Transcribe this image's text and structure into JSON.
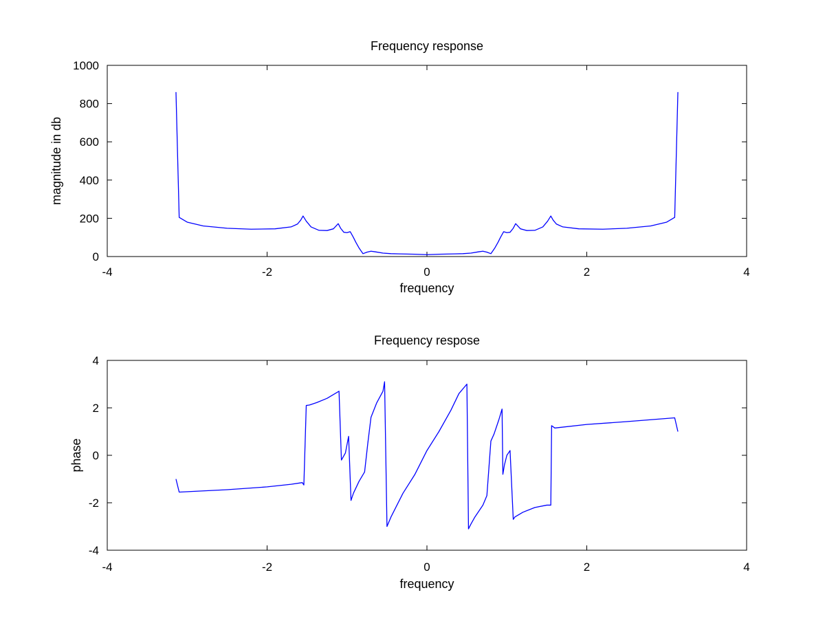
{
  "chart_data": [
    {
      "type": "line",
      "title": "Frequency response",
      "xlabel": "frequency",
      "ylabel": "magnitude in db",
      "xlim": [
        -4,
        4
      ],
      "ylim": [
        0,
        1000
      ],
      "xticks": [
        -4,
        -2,
        0,
        2,
        4
      ],
      "yticks": [
        0,
        200,
        400,
        600,
        800,
        1000
      ],
      "xtick_labels": [
        "-4",
        "-2",
        "0",
        "2",
        "4"
      ],
      "ytick_labels": [
        "0",
        "200",
        "400",
        "600",
        "800",
        "1000"
      ],
      "grid": false,
      "legend": "none",
      "series": [
        {
          "color": "#0000ff",
          "x": [
            -3.14,
            -3.1,
            -3.0,
            -2.8,
            -2.5,
            -2.2,
            -1.9,
            -1.7,
            -1.62,
            -1.58,
            -1.55,
            -1.51,
            -1.45,
            -1.35,
            -1.25,
            -1.17,
            -1.11,
            -1.08,
            -1.04,
            -1.0,
            -0.96,
            -0.92,
            -0.89,
            -0.85,
            -0.8,
            -0.75,
            -0.7,
            -0.65,
            -0.55,
            -0.45,
            -0.35,
            -0.25,
            -0.15,
            0,
            0.15,
            0.25,
            0.35,
            0.45,
            0.55,
            0.65,
            0.7,
            0.75,
            0.8,
            0.85,
            0.89,
            0.92,
            0.96,
            1.0,
            1.04,
            1.08,
            1.11,
            1.17,
            1.25,
            1.35,
            1.45,
            1.51,
            1.55,
            1.58,
            1.62,
            1.7,
            1.9,
            2.2,
            2.5,
            2.8,
            3.0,
            3.1,
            3.14
          ],
          "y": [
            860,
            205,
            180,
            160,
            148,
            143,
            145,
            155,
            170,
            190,
            212,
            185,
            155,
            137,
            136,
            145,
            172,
            148,
            127,
            125,
            130,
            100,
            75,
            45,
            15,
            23,
            28,
            25,
            18,
            15,
            14,
            13,
            12,
            10,
            12,
            13,
            14,
            15,
            18,
            25,
            28,
            23,
            15,
            45,
            75,
            100,
            130,
            125,
            127,
            148,
            172,
            145,
            136,
            137,
            155,
            185,
            212,
            190,
            170,
            155,
            145,
            143,
            148,
            160,
            180,
            205,
            860
          ]
        }
      ]
    },
    {
      "type": "line",
      "title": "Frequency respose",
      "xlabel": "frequency",
      "ylabel": "phase",
      "xlim": [
        -4,
        4
      ],
      "ylim": [
        -4,
        4
      ],
      "xticks": [
        -4,
        -2,
        0,
        2,
        4
      ],
      "yticks": [
        -4,
        -2,
        0,
        2,
        4
      ],
      "xtick_labels": [
        "-4",
        "-2",
        "0",
        "2",
        "4"
      ],
      "ytick_labels": [
        "-4",
        "-2",
        "0",
        "2",
        "4"
      ],
      "grid": false,
      "legend": "none",
      "series": [
        {
          "color": "#0000ff",
          "x": [
            -3.14,
            -3.1,
            -2.5,
            -2.0,
            -1.7,
            -1.56,
            -1.54,
            -1.51,
            -1.47,
            -1.38,
            -1.25,
            -1.1,
            -1.07,
            -1.02,
            -0.98,
            -0.95,
            -0.92,
            -0.85,
            -0.78,
            -0.74,
            -0.7,
            -0.63,
            -0.55,
            -0.53,
            -0.5,
            -0.45,
            -0.3,
            -0.15,
            0,
            0.15,
            0.3,
            0.4,
            0.5,
            0.52,
            0.55,
            0.6,
            0.7,
            0.75,
            0.8,
            0.84,
            0.9,
            0.94,
            0.95,
            0.97,
            1.0,
            1.04,
            1.08,
            1.1,
            1.2,
            1.35,
            1.5,
            1.55,
            1.56,
            1.6,
            2.0,
            2.5,
            3.1,
            3.14
          ],
          "y": [
            -1.0,
            -1.55,
            -1.45,
            -1.33,
            -1.22,
            -1.15,
            -1.25,
            2.1,
            2.12,
            2.22,
            2.4,
            2.7,
            -0.2,
            0.1,
            0.8,
            -1.9,
            -1.6,
            -1.1,
            -0.7,
            0.5,
            1.6,
            2.2,
            2.7,
            3.1,
            -3.0,
            -2.6,
            -1.6,
            -0.8,
            0.2,
            1.0,
            1.9,
            2.6,
            3.0,
            -3.1,
            -2.9,
            -2.6,
            -2.1,
            -1.7,
            0.6,
            0.9,
            1.5,
            1.95,
            -0.8,
            -0.4,
            0.0,
            0.2,
            -2.7,
            -2.6,
            -2.4,
            -2.2,
            -2.1,
            -2.1,
            1.25,
            1.15,
            1.3,
            1.42,
            1.58,
            1.0
          ]
        }
      ]
    }
  ]
}
